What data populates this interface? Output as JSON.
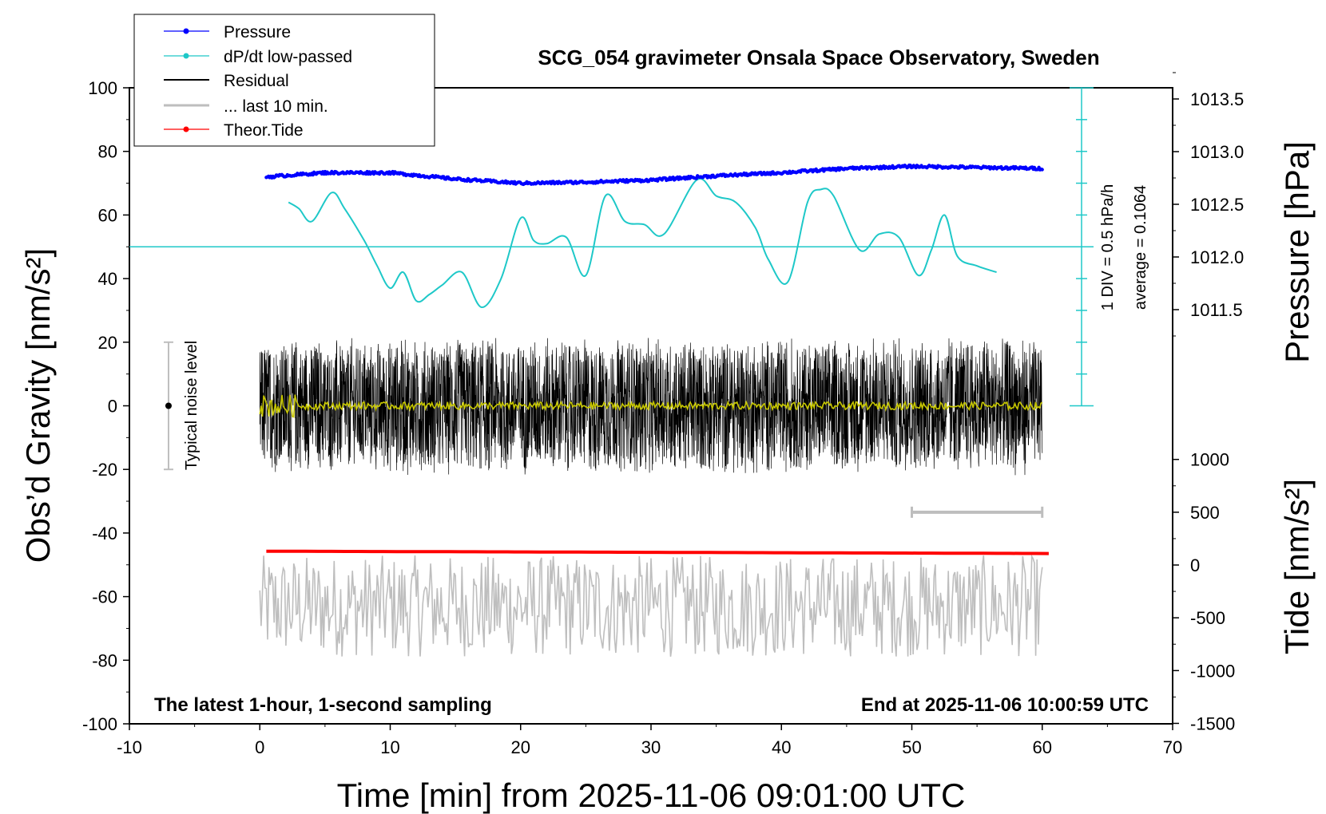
{
  "chart_data": {
    "type": "line",
    "title": "SCG_054 gravimeter Onsala Space Observatory, Sweden",
    "xlabel": "Time [min] from 2025-11-06 09:01:00 UTC",
    "ylabel_left": "Obs’d Gravity [nm/s²]",
    "ylabel_right_top": "Pressure [hPa]",
    "ylabel_right_bottom": "Tide [nm/s²]",
    "xlim": [
      -10,
      70
    ],
    "ylim_left": [
      -100,
      100
    ],
    "x_ticks": [
      "-10",
      "0",
      "10",
      "20",
      "30",
      "40",
      "50",
      "60",
      "70"
    ],
    "y_ticks_left": [
      "100",
      "80",
      "60",
      "40",
      "20",
      "0",
      "-20",
      "-40",
      "-60",
      "-80",
      "-100"
    ],
    "pressure_ticks": [
      "1013.5",
      "1013.0",
      "1012.5",
      "1012.0",
      "1011.5"
    ],
    "tide_ticks": [
      "1000",
      "500",
      "0",
      "-500",
      "-1000",
      "-1500"
    ],
    "legend": {
      "placement": "top-left",
      "entries": [
        "Pressure",
        "dP/dt low-passed",
        "Residual",
        "... last 10 min.",
        "Theor.Tide"
      ]
    },
    "annotations": {
      "noise_label": "Typical noise level",
      "div_label": "1 DIV = 0.5 hPa/h",
      "average_label": "average = 0.1064",
      "bottom_left": "The latest 1-hour, 1-second sampling",
      "bottom_right": "End at 2025-11-06 10:00:59 UTC"
    },
    "noise_bar": {
      "x": -7,
      "y_low": -20,
      "y_high": 20
    },
    "last10_bar": {
      "x_start": 50,
      "x_end": 60,
      "tide_value": 500
    },
    "dpdt_baseline_gravity": 50,
    "series": [
      {
        "name": "Pressure",
        "color": "#0000ff",
        "unit": "hPa",
        "x": [
          0.5,
          5,
          10,
          15,
          20,
          25,
          30,
          35,
          40,
          45,
          50,
          55,
          60
        ],
        "values": [
          1012.76,
          1012.8,
          1012.8,
          1012.74,
          1012.7,
          1012.71,
          1012.73,
          1012.77,
          1012.8,
          1012.84,
          1012.86,
          1012.85,
          1012.84
        ]
      },
      {
        "name": "dP/dt low-passed",
        "color": "#1ec8c8",
        "unit": "gravity-axis",
        "x": [
          2.2,
          3,
          4,
          5.5,
          6.5,
          8,
          9,
          10,
          11,
          12,
          13,
          14,
          15.5,
          17,
          18.5,
          20,
          21,
          22,
          23.5,
          25,
          26.5,
          28,
          29.5,
          31,
          33.5,
          35,
          36.5,
          38,
          39,
          40.5,
          42,
          43,
          44,
          46,
          47.5,
          49,
          50.5,
          51.5,
          52.5,
          53.5,
          55,
          56.5
        ],
        "values": [
          64,
          62,
          58,
          67,
          62,
          52,
          44,
          37,
          42,
          33,
          35,
          38,
          42,
          31,
          40,
          59,
          52,
          51,
          53,
          41,
          66,
          58,
          57,
          54,
          71,
          66,
          64,
          56,
          46,
          39,
          64,
          68,
          66,
          49,
          54,
          53,
          41,
          49,
          60,
          47,
          44,
          42
        ]
      },
      {
        "name": "Residual",
        "color": "#000000",
        "unit": "nm/s²",
        "x_range": [
          0,
          60
        ],
        "amplitude": 22
      },
      {
        "name": "... last 10 min.",
        "color": "#bebebe",
        "unit": "gravity-axis",
        "x_range": [
          0,
          60
        ],
        "baseline": -63,
        "amplitude": 16
      },
      {
        "name": "Theor.Tide",
        "color": "#ff0000",
        "unit": "nm/s²",
        "x": [
          0.5,
          60.5
        ],
        "values": [
          131,
          109
        ]
      },
      {
        "name": "low-pass",
        "color": "#c8c800",
        "unit": "nm/s²",
        "x_range": [
          0,
          60
        ],
        "amplitude": 1.2
      }
    ]
  }
}
